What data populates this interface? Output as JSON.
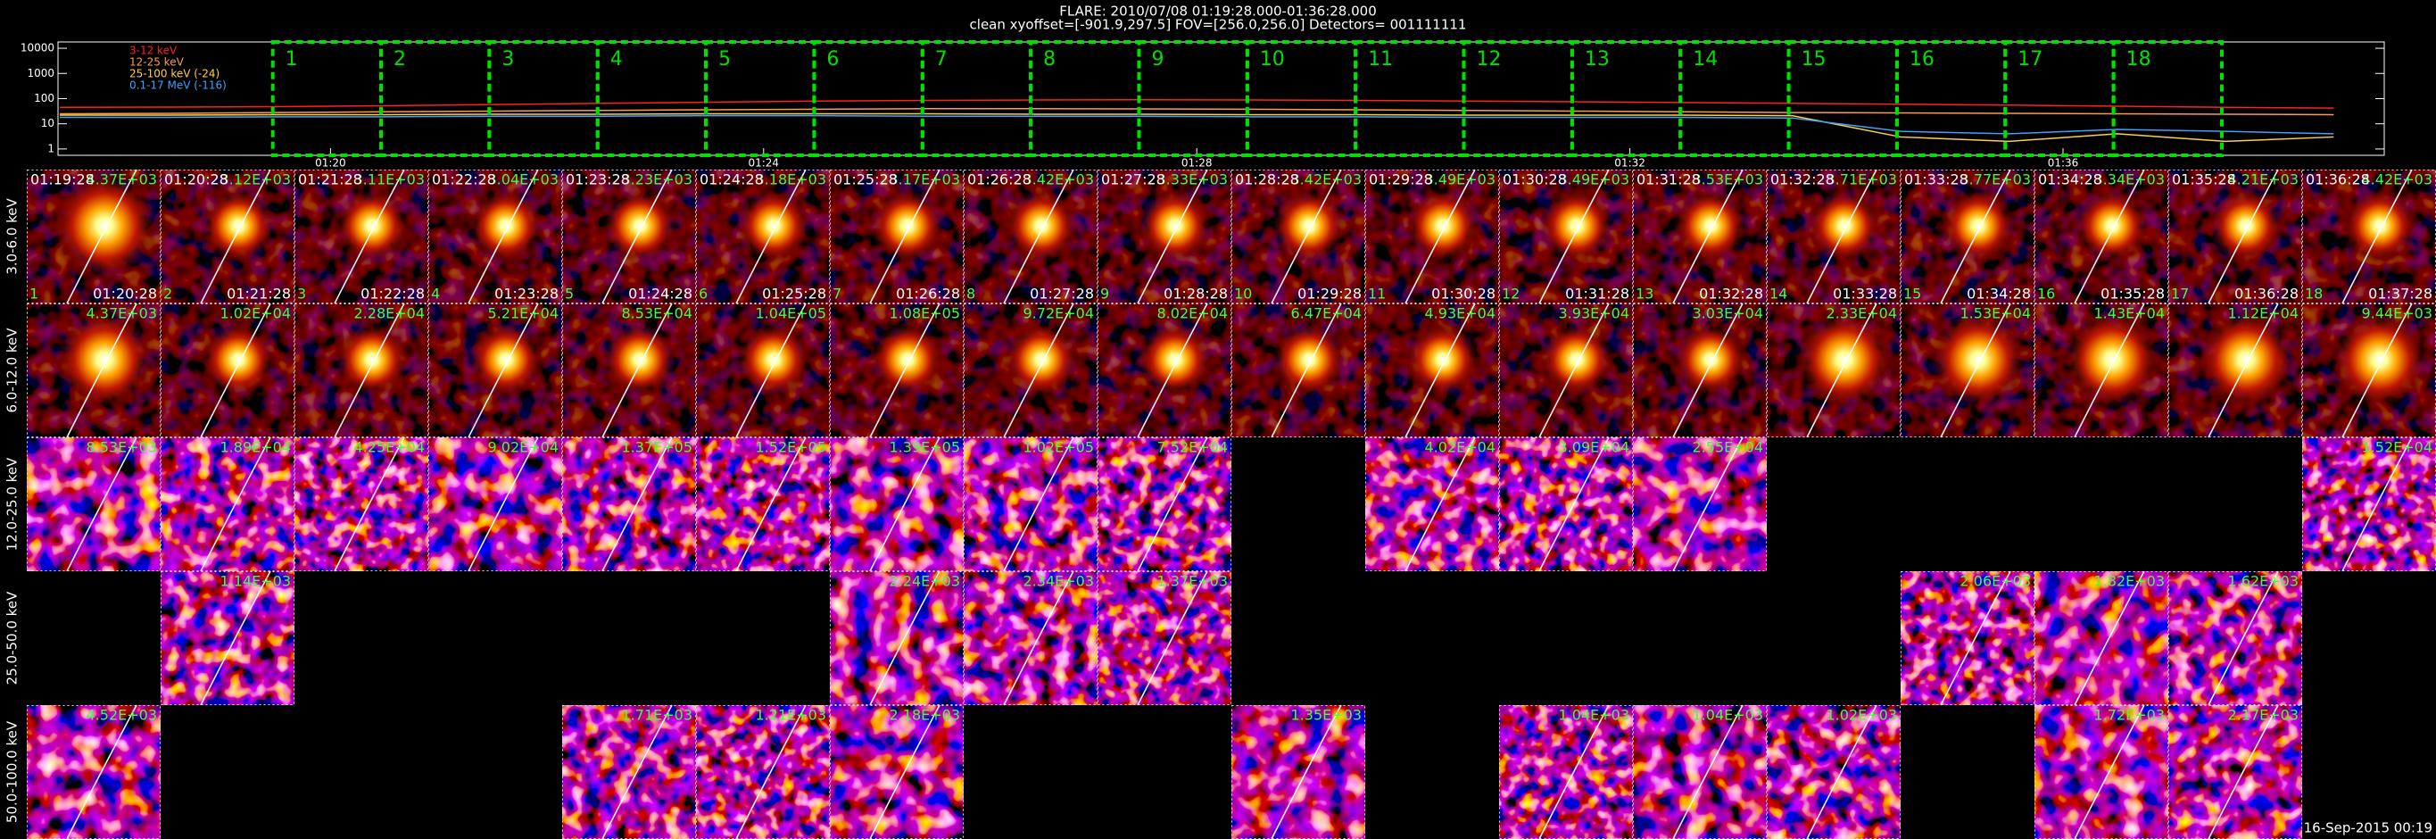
{
  "header": {
    "title": "FLARE: 2010/07/08 01:19:28.000-01:36:28.000",
    "subtitle": "clean   xyoffset=[-901.9,297.5]   FOV=[256.0,256.0]   Detectors= 001111111"
  },
  "chart_data": {
    "type": "line",
    "log_y": true,
    "legend": "upper left",
    "xlim": [
      "01:17:29",
      "01:38:58"
    ],
    "ylim": [
      0.56,
      17800
    ],
    "xticks": [
      "01:20",
      "01:24",
      "01:28",
      "01:32",
      "01:36"
    ],
    "yticks": [
      1,
      10,
      100,
      1000,
      10000
    ],
    "x": [
      "01:17:30",
      "01:18:30",
      "01:19:30",
      "01:20:30",
      "01:21:30",
      "01:22:30",
      "01:23:30",
      "01:24:30",
      "01:25:30",
      "01:26:30",
      "01:27:30",
      "01:28:30",
      "01:29:30",
      "01:30:30",
      "01:31:30",
      "01:32:30",
      "01:33:30",
      "01:34:30",
      "01:35:30",
      "01:36:30",
      "01:37:30",
      "01:38:30"
    ],
    "series": [
      {
        "name": "3-12 keV",
        "color": "#ff2020",
        "values": [
          45,
          46,
          48,
          52,
          58,
          65,
          72,
          80,
          85,
          88,
          90,
          88,
          85,
          80,
          75,
          70,
          65,
          60,
          55,
          50,
          45,
          42
        ]
      },
      {
        "name": "12-25 keV",
        "color": "#ff9a50",
        "values": [
          25,
          26,
          28,
          30,
          32,
          34,
          36,
          38,
          40,
          40,
          39,
          38,
          36,
          34,
          32,
          30,
          28,
          27,
          26,
          25,
          24,
          23
        ]
      },
      {
        "name": "25-100 keV (-24)",
        "color": "#ffd040",
        "values": [
          22,
          22,
          23,
          23,
          24,
          24,
          25,
          25,
          25,
          24,
          24,
          23,
          23,
          22,
          22,
          22,
          21,
          3,
          2,
          4,
          2,
          3
        ]
      },
      {
        "name": "0.1-17 MeV (-116)",
        "color": "#3f9fff",
        "values": [
          18,
          18,
          19,
          19,
          20,
          20,
          21,
          21,
          20,
          20,
          20,
          19,
          19,
          18,
          18,
          18,
          17,
          5,
          4,
          6,
          5,
          4
        ]
      }
    ],
    "interval_color": "#00e000",
    "intervals": [
      {
        "label": "1",
        "start": "01:19:28",
        "end": "01:20:28"
      },
      {
        "label": "2",
        "start": "01:20:28",
        "end": "01:21:28"
      },
      {
        "label": "3",
        "start": "01:21:28",
        "end": "01:22:28"
      },
      {
        "label": "4",
        "start": "01:22:28",
        "end": "01:23:28"
      },
      {
        "label": "5",
        "start": "01:23:28",
        "end": "01:24:28"
      },
      {
        "label": "6",
        "start": "01:24:28",
        "end": "01:25:28"
      },
      {
        "label": "7",
        "start": "01:25:28",
        "end": "01:26:28"
      },
      {
        "label": "8",
        "start": "01:26:28",
        "end": "01:27:28"
      },
      {
        "label": "9",
        "start": "01:27:28",
        "end": "01:28:28"
      },
      {
        "label": "10",
        "start": "01:28:28",
        "end": "01:29:28"
      },
      {
        "label": "11",
        "start": "01:29:28",
        "end": "01:30:28"
      },
      {
        "label": "12",
        "start": "01:30:28",
        "end": "01:31:28"
      },
      {
        "label": "13",
        "start": "01:31:28",
        "end": "01:32:28"
      },
      {
        "label": "14",
        "start": "01:32:28",
        "end": "01:33:28"
      },
      {
        "label": "15",
        "start": "01:33:28",
        "end": "01:34:28"
      },
      {
        "label": "16",
        "start": "01:34:28",
        "end": "01:35:28"
      },
      {
        "label": "17",
        "start": "01:35:28",
        "end": "01:36:28"
      },
      {
        "label": "18",
        "start": "01:36:28",
        "end": "01:37:28"
      }
    ]
  },
  "panels": {
    "rows": [
      {
        "energy": "3.0-6.0 keV",
        "cells": [
          "4.37E+03",
          "3.12E+03",
          "3.11E+03",
          "3.04E+03",
          "3.23E+03",
          "3.18E+03",
          "3.17E+03",
          "3.42E+03",
          "3.33E+03",
          "3.42E+03",
          "3.49E+03",
          "3.49E+03",
          "3.53E+03",
          "3.71E+03",
          "3.77E+03",
          "3.34E+03",
          "4.21E+03",
          "4.42E+03"
        ]
      },
      {
        "energy": "6.0-12.0 keV",
        "cells": [
          "4.37E+03",
          "1.02E+04",
          "2.28E+04",
          "5.21E+04",
          "8.53E+04",
          "1.04E+05",
          "1.08E+05",
          "9.72E+04",
          "8.02E+04",
          "6.47E+04",
          "4.93E+04",
          "3.93E+04",
          "3.03E+04",
          "2.33E+04",
          "1.53E+04",
          "1.43E+04",
          "1.12E+04",
          "9.44E+03"
        ]
      },
      {
        "energy": "12.0-25.0 keV",
        "cells": [
          "8.53E+03",
          "1.89E+04",
          "4.25E+04",
          "9.02E+04",
          "1.37E+05",
          "1.52E+05",
          "1.39E+05",
          "1.02E+05",
          "7.52E+04",
          null,
          "4.02E+04",
          "3.09E+04",
          "2.55E+04",
          null,
          null,
          null,
          null,
          "1.52E+04"
        ]
      },
      {
        "energy": "25.0-50.0 keV",
        "cells": [
          null,
          "1.14E+03",
          null,
          null,
          null,
          null,
          "2.24E+03",
          "2.34E+03",
          "1.37E+03",
          null,
          null,
          null,
          null,
          null,
          "2.06E+03",
          "1.82E+03",
          "1.62E+03",
          null
        ]
      },
      {
        "energy": "50.0-100.0 keV",
        "cells": [
          "4.52E+03",
          null,
          null,
          null,
          "1.71E+03",
          "1.21E+03",
          "2.18E+03",
          null,
          null,
          "1.35E+03",
          null,
          "1.04E+03",
          "1.04E+03",
          "1.02E+03",
          null,
          "1.72E+03",
          "2.17E+03",
          null
        ]
      }
    ]
  },
  "footer": "16-Sep-2015 00:19"
}
